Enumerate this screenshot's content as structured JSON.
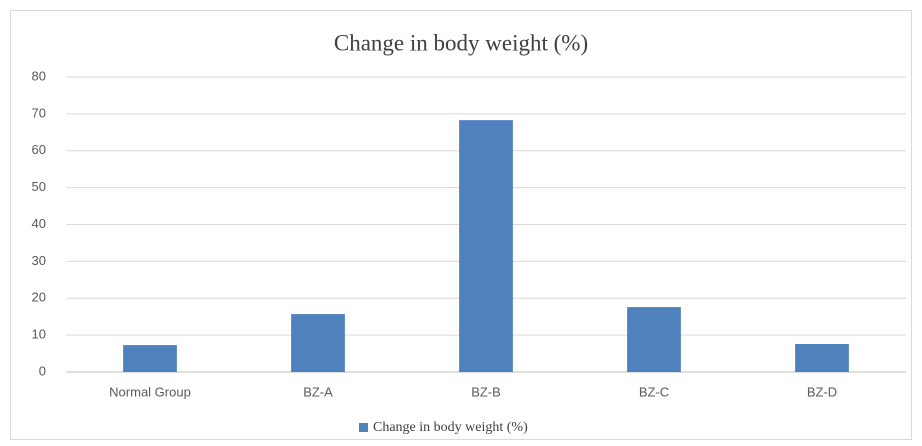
{
  "chart_data": {
    "type": "bar",
    "title": "Change in body weight (%)",
    "categories": [
      "Normal Group",
      "BZ-A",
      "BZ-B",
      "BZ-C",
      "BZ-D"
    ],
    "series": [
      {
        "name": "Change in body weight (%)",
        "color": "#4f81bd",
        "values": [
          7.3,
          15.7,
          68.3,
          17.6,
          7.6
        ]
      }
    ],
    "ylim": [
      0,
      80
    ],
    "yticks": [
      0,
      10,
      20,
      30,
      40,
      50,
      60,
      70,
      80
    ],
    "grid": true,
    "legend": "bottom"
  }
}
